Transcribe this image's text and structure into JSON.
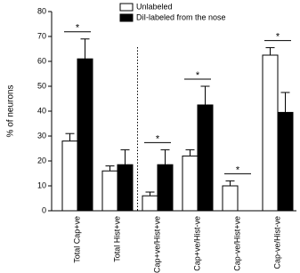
{
  "chart_data": {
    "type": "bar",
    "y_label": "% of neurons",
    "categories": [
      "Total Cap+ve",
      "Total Hist+ve",
      "Cap+ve/Hist+ve",
      "Cap+ve/Hist-ve",
      "Cap-ve/Hist+ve",
      "Cap-ve/Hist-ve"
    ],
    "series": [
      {
        "name": "Unlabeled",
        "color": "#ffffff",
        "values": [
          28,
          16,
          6,
          22,
          10,
          62.5
        ],
        "errors": [
          3,
          2,
          1.5,
          2.5,
          2,
          3
        ]
      },
      {
        "name": "DiI-labeled from the nose",
        "color": "#000000",
        "values": [
          61,
          18.5,
          18.5,
          42.5,
          0,
          39.5
        ],
        "errors": [
          8,
          6,
          6,
          7.5,
          0,
          8
        ]
      }
    ],
    "significance": [
      "*",
      null,
      "*",
      "*",
      "*",
      "*"
    ],
    "ylim": [
      0,
      80
    ],
    "yticks": [
      0,
      10,
      20,
      30,
      40,
      50,
      60,
      70,
      80
    ],
    "legend": "top"
  }
}
